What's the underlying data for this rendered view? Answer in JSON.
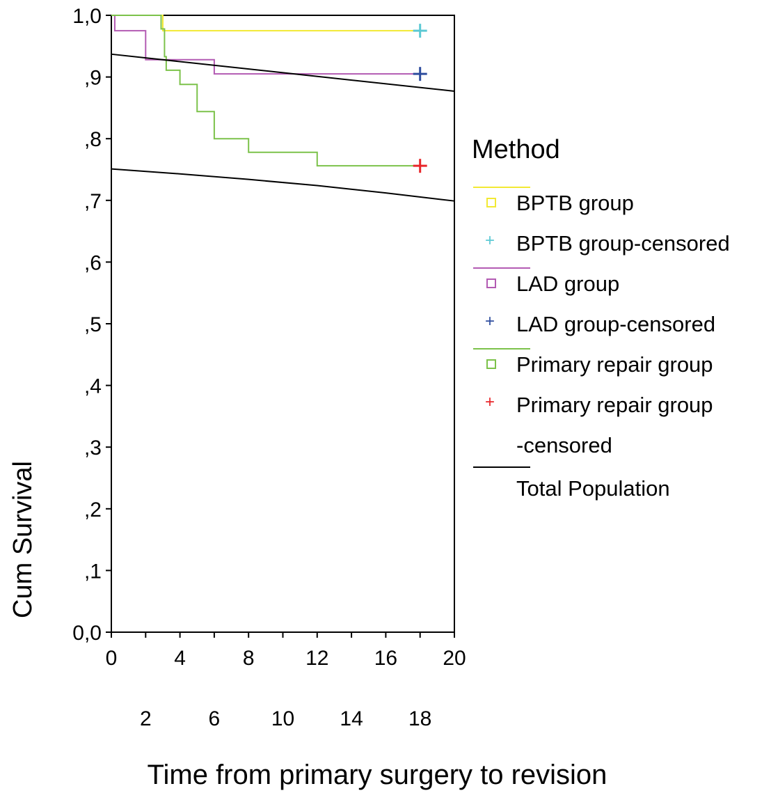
{
  "chart_data": {
    "type": "line",
    "subtype": "kaplan-meier",
    "title": "",
    "ylabel": "Cum Survival",
    "xlabel": "Time from primary surgery to revision",
    "xlim": [
      0,
      20
    ],
    "ylim": [
      0,
      1
    ],
    "x_ticks_upper": [
      "0",
      "4",
      "8",
      "12",
      "16",
      "20"
    ],
    "x_ticks_lower": [
      "2",
      "6",
      "10",
      "14",
      "18"
    ],
    "y_ticks": [
      "0,0",
      ",1",
      ",2",
      ",3",
      ",4",
      ",5",
      ",6",
      ",7",
      ",8",
      ",9",
      "1,0"
    ],
    "grid": false,
    "legend_position": "right",
    "legend_title": "Method",
    "series": [
      {
        "name": "BPTB group",
        "color": "#f2e933",
        "censored_label": "BPTB group-censored",
        "censor_color": "#5cc9d4",
        "steps": [
          [
            0,
            1.0
          ],
          [
            3.0,
            0.975
          ],
          [
            18,
            0.975
          ]
        ],
        "censored": [
          [
            18,
            0.975
          ]
        ]
      },
      {
        "name": "LAD group",
        "color": "#b35bb3",
        "censored_label": "LAD group-censored",
        "censor_color": "#2e4d9e",
        "steps": [
          [
            0,
            1.0
          ],
          [
            0.2,
            0.975
          ],
          [
            2.0,
            0.928
          ],
          [
            6.0,
            0.905
          ],
          [
            18,
            0.905
          ]
        ],
        "censored": [
          [
            18,
            0.905
          ]
        ]
      },
      {
        "name": "Primary repair group",
        "color": "#7cc24a",
        "censored_label": "Primary repair group -censored",
        "censored_label_lines": [
          "Primary repair group",
          "-censored"
        ],
        "censor_color": "#e8262a",
        "steps": [
          [
            0,
            1.0
          ],
          [
            2.9,
            0.978
          ],
          [
            3.1,
            0.933
          ],
          [
            3.2,
            0.911
          ],
          [
            4.0,
            0.888
          ],
          [
            5.0,
            0.844
          ],
          [
            6.0,
            0.8
          ],
          [
            8.0,
            0.778
          ],
          [
            12.0,
            0.756
          ],
          [
            18,
            0.756
          ]
        ],
        "censored": [
          [
            18,
            0.756
          ]
        ]
      },
      {
        "name": "Total Population",
        "color": "#000000",
        "lines": [
          [
            [
              0,
              0.937
            ],
            [
              20,
              0.877
            ]
          ],
          [
            [
              0,
              0.751
            ],
            [
              4,
              0.743
            ],
            [
              8,
              0.734
            ],
            [
              12,
              0.724
            ],
            [
              16,
              0.712
            ],
            [
              20,
              0.699
            ]
          ]
        ]
      }
    ]
  }
}
